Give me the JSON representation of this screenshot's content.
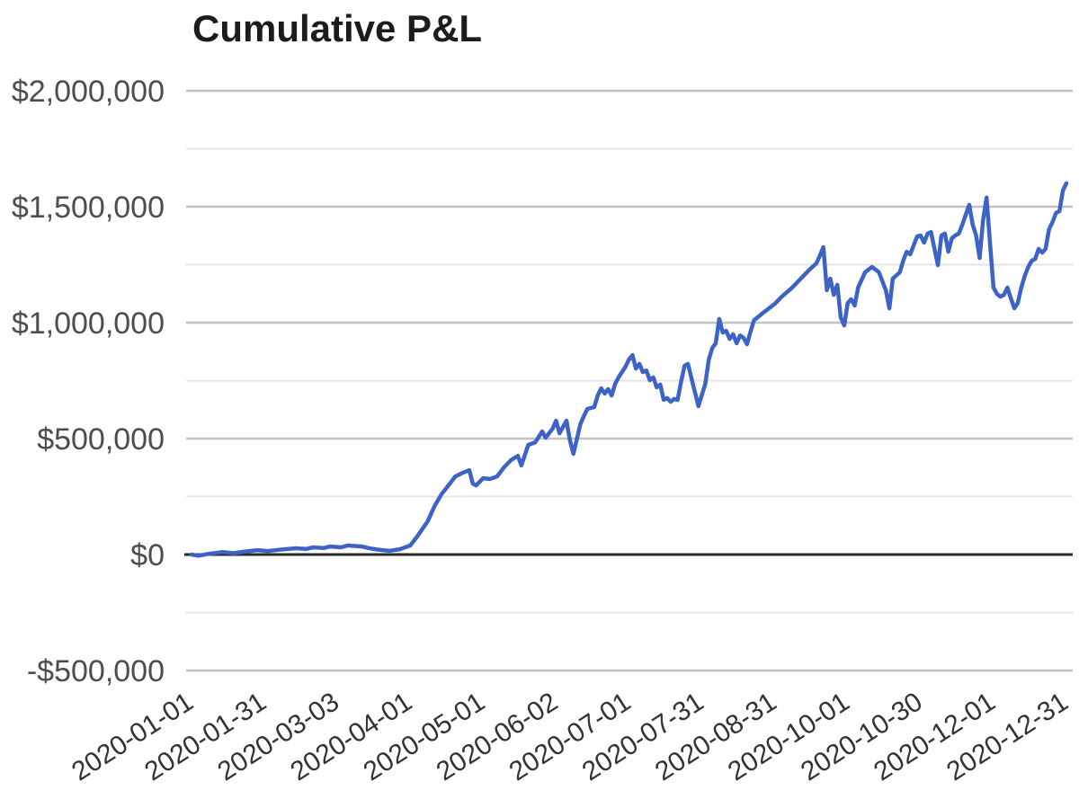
{
  "title": "Cumulative P&L",
  "units": "USD",
  "colors": {
    "background": "#ffffff",
    "title_text": "#1c1c1c",
    "y_tick_text": "#4d4d4d",
    "x_tick_text": "#333333",
    "major_gridline": "#c2c2c2",
    "minor_gridline": "#e6e6e6",
    "zero_line": "#2a2a2a",
    "series_line": "#3d63c6"
  },
  "chart_data": {
    "type": "line",
    "title": "Cumulative P&L",
    "series_name": "Cumulative P&L",
    "xlabel": "",
    "ylabel": "",
    "legend": false,
    "grid": true,
    "ylim": [
      -500000,
      2000000
    ],
    "x_range_days": [
      0,
      252
    ],
    "x_tick_labels": [
      "2020-01-01",
      "2020-01-31",
      "2020-03-03",
      "2020-04-01",
      "2020-05-01",
      "2020-06-02",
      "2020-07-01",
      "2020-07-31",
      "2020-08-31",
      "2020-10-01",
      "2020-10-30",
      "2020-12-01",
      "2020-12-31"
    ],
    "x_tick_day_indices": [
      0,
      21,
      42,
      63,
      84,
      105,
      126,
      147,
      168,
      189,
      210,
      231,
      252
    ],
    "y_tick_labels": [
      "$2,000,000",
      "$1,500,000",
      "$1,000,000",
      "$500,000",
      "$0",
      "-$500,000"
    ],
    "y_tick_values": [
      2000000,
      1500000,
      1000000,
      500000,
      0,
      -500000
    ],
    "y_minor_gridline_values": [
      1750000,
      1250000,
      750000,
      250000,
      -250000
    ],
    "line_color": "#3d63c6",
    "points_format": "[trading_day_index, cumulative_pnl_usd]",
    "points": [
      [
        0,
        0
      ],
      [
        2,
        -5000
      ],
      [
        5,
        3000
      ],
      [
        9,
        11000
      ],
      [
        12,
        6000
      ],
      [
        16,
        14000
      ],
      [
        19,
        19000
      ],
      [
        22,
        15000
      ],
      [
        25,
        20000
      ],
      [
        28,
        24000
      ],
      [
        30,
        27000
      ],
      [
        33,
        24000
      ],
      [
        35,
        31000
      ],
      [
        38,
        28000
      ],
      [
        40,
        35000
      ],
      [
        43,
        31000
      ],
      [
        45,
        39000
      ],
      [
        47,
        37000
      ],
      [
        49,
        35000
      ],
      [
        51,
        28000
      ],
      [
        53,
        23000
      ],
      [
        55,
        19000
      ],
      [
        57,
        16000
      ],
      [
        60,
        23000
      ],
      [
        63,
        39000
      ],
      [
        65,
        78000
      ],
      [
        68,
        143000
      ],
      [
        70,
        209000
      ],
      [
        72,
        260000
      ],
      [
        74,
        298000
      ],
      [
        76,
        337000
      ],
      [
        78,
        352000
      ],
      [
        80,
        364000
      ],
      [
        81,
        306000
      ],
      [
        82,
        298000
      ],
      [
        84,
        329000
      ],
      [
        86,
        326000
      ],
      [
        88,
        337000
      ],
      [
        90,
        376000
      ],
      [
        92,
        407000
      ],
      [
        94,
        426000
      ],
      [
        95,
        384000
      ],
      [
        97,
        473000
      ],
      [
        99,
        484000
      ],
      [
        101,
        531000
      ],
      [
        102,
        504000
      ],
      [
        104,
        543000
      ],
      [
        105,
        577000
      ],
      [
        106,
        523000
      ],
      [
        107,
        550000
      ],
      [
        108,
        577000
      ],
      [
        109,
        492000
      ],
      [
        110,
        434000
      ],
      [
        112,
        562000
      ],
      [
        113,
        597000
      ],
      [
        114,
        628000
      ],
      [
        116,
        636000
      ],
      [
        117,
        686000
      ],
      [
        118,
        717000
      ],
      [
        119,
        694000
      ],
      [
        120,
        713000
      ],
      [
        121,
        686000
      ],
      [
        122,
        736000
      ],
      [
        123,
        764000
      ],
      [
        125,
        810000
      ],
      [
        126,
        841000
      ],
      [
        127,
        860000
      ],
      [
        128,
        802000
      ],
      [
        129,
        822000
      ],
      [
        130,
        787000
      ],
      [
        131,
        794000
      ],
      [
        132,
        752000
      ],
      [
        133,
        764000
      ],
      [
        134,
        721000
      ],
      [
        135,
        733000
      ],
      [
        136,
        667000
      ],
      [
        137,
        675000
      ],
      [
        138,
        659000
      ],
      [
        139,
        671000
      ],
      [
        140,
        667000
      ],
      [
        141,
        744000
      ],
      [
        142,
        814000
      ],
      [
        143,
        822000
      ],
      [
        144,
        760000
      ],
      [
        145,
        700000
      ],
      [
        146,
        640000
      ],
      [
        148,
        736000
      ],
      [
        149,
        841000
      ],
      [
        150,
        891000
      ],
      [
        151,
        911000
      ],
      [
        152,
        1016000
      ],
      [
        153,
        957000
      ],
      [
        154,
        965000
      ],
      [
        155,
        930000
      ],
      [
        156,
        950000
      ],
      [
        157,
        911000
      ],
      [
        158,
        945000
      ],
      [
        159,
        935000
      ],
      [
        160,
        907000
      ],
      [
        161,
        960000
      ],
      [
        162,
        1010000
      ],
      [
        165,
        1047000
      ],
      [
        168,
        1081000
      ],
      [
        170,
        1112000
      ],
      [
        173,
        1151000
      ],
      [
        175,
        1182000
      ],
      [
        178,
        1229000
      ],
      [
        180,
        1256000
      ],
      [
        181,
        1290000
      ],
      [
        182,
        1326000
      ],
      [
        183,
        1140000
      ],
      [
        184,
        1190000
      ],
      [
        185,
        1120000
      ],
      [
        186,
        1163000
      ],
      [
        187,
        1023000
      ],
      [
        188,
        988000
      ],
      [
        189,
        1085000
      ],
      [
        190,
        1101000
      ],
      [
        191,
        1074000
      ],
      [
        192,
        1151000
      ],
      [
        194,
        1217000
      ],
      [
        195,
        1229000
      ],
      [
        196,
        1240000
      ],
      [
        197,
        1229000
      ],
      [
        198,
        1217000
      ],
      [
        200,
        1140000
      ],
      [
        201,
        1062000
      ],
      [
        202,
        1190000
      ],
      [
        204,
        1217000
      ],
      [
        205,
        1267000
      ],
      [
        206,
        1306000
      ],
      [
        207,
        1295000
      ],
      [
        209,
        1372000
      ],
      [
        210,
        1376000
      ],
      [
        211,
        1345000
      ],
      [
        212,
        1384000
      ],
      [
        213,
        1391000
      ],
      [
        214,
        1318000
      ],
      [
        215,
        1248000
      ],
      [
        216,
        1376000
      ],
      [
        217,
        1384000
      ],
      [
        218,
        1306000
      ],
      [
        219,
        1364000
      ],
      [
        220,
        1376000
      ],
      [
        221,
        1384000
      ],
      [
        222,
        1422000
      ],
      [
        224,
        1508000
      ],
      [
        225,
        1422000
      ],
      [
        226,
        1376000
      ],
      [
        227,
        1279000
      ],
      [
        228,
        1442000
      ],
      [
        229,
        1539000
      ],
      [
        230,
        1340000
      ],
      [
        231,
        1151000
      ],
      [
        232,
        1124000
      ],
      [
        233,
        1112000
      ],
      [
        234,
        1120000
      ],
      [
        235,
        1151000
      ],
      [
        236,
        1105000
      ],
      [
        237,
        1062000
      ],
      [
        238,
        1085000
      ],
      [
        239,
        1151000
      ],
      [
        240,
        1202000
      ],
      [
        241,
        1240000
      ],
      [
        242,
        1267000
      ],
      [
        243,
        1275000
      ],
      [
        244,
        1318000
      ],
      [
        245,
        1302000
      ],
      [
        246,
        1318000
      ],
      [
        247,
        1403000
      ],
      [
        248,
        1434000
      ],
      [
        249,
        1473000
      ],
      [
        250,
        1481000
      ],
      [
        251,
        1570000
      ],
      [
        252,
        1601000
      ]
    ]
  }
}
